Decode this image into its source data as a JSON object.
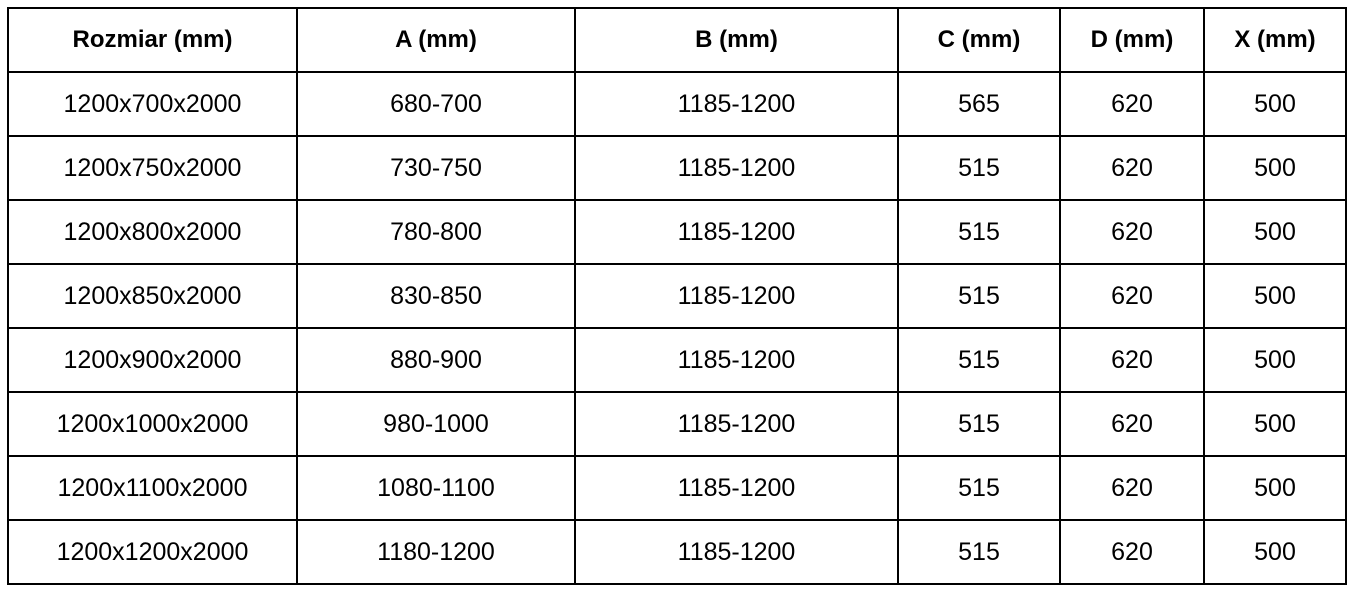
{
  "headers": [
    "Rozmiar (mm)",
    "A (mm)",
    "B (mm)",
    "C (mm)",
    "D (mm)",
    "X (mm)"
  ],
  "rows": [
    [
      "1200x700x2000",
      "680-700",
      "1185-1200",
      "565",
      "620",
      "500"
    ],
    [
      "1200x750x2000",
      "730-750",
      "1185-1200",
      "515",
      "620",
      "500"
    ],
    [
      "1200x800x2000",
      "780-800",
      "1185-1200",
      "515",
      "620",
      "500"
    ],
    [
      "1200x850x2000",
      "830-850",
      "1185-1200",
      "515",
      "620",
      "500"
    ],
    [
      "1200x900x2000",
      "880-900",
      "1185-1200",
      "515",
      "620",
      "500"
    ],
    [
      "1200x1000x2000",
      "980-1000",
      "1185-1200",
      "515",
      "620",
      "500"
    ],
    [
      "1200x1100x2000",
      "1080-1100",
      "1185-1200",
      "515",
      "620",
      "500"
    ],
    [
      "1200x1200x2000",
      "1180-1200",
      "1185-1200",
      "515",
      "620",
      "500"
    ]
  ]
}
